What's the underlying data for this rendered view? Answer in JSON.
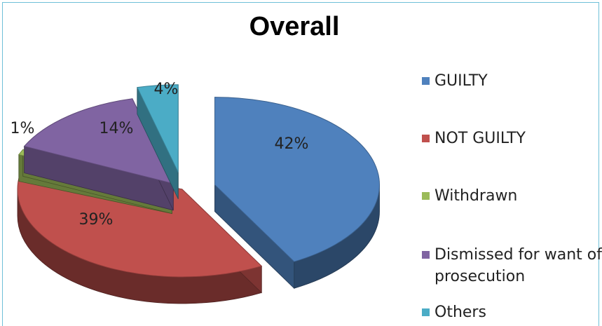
{
  "chart_data": {
    "type": "pie",
    "title": "Overall",
    "categories": [
      "GUILTY",
      "NOT GUILTY",
      "Withdrawn",
      "Dismissed for want of prosecution",
      "Others"
    ],
    "values": [
      42,
      39,
      1,
      14,
      4
    ],
    "data_labels": [
      "42%",
      "39%",
      "1%",
      "14%",
      "4%"
    ],
    "legend": [
      {
        "label": "GUILTY"
      },
      {
        "label": "NOT GUILTY"
      },
      {
        "label": "Withdrawn"
      },
      {
        "label": "Dismissed for want of prosecution",
        "lines": [
          "Dismissed for want of",
          "prosecution"
        ]
      },
      {
        "label": "Others"
      }
    ],
    "legend_position": "right",
    "style": "3d-exploded-pie"
  },
  "colors": {
    "GUILTY": "#4f81bd",
    "NOT GUILTY": "#c0504d",
    "Withdrawn": "#9bbb59",
    "Dismissed": "#8064a2",
    "Others": "#4bacc6"
  }
}
